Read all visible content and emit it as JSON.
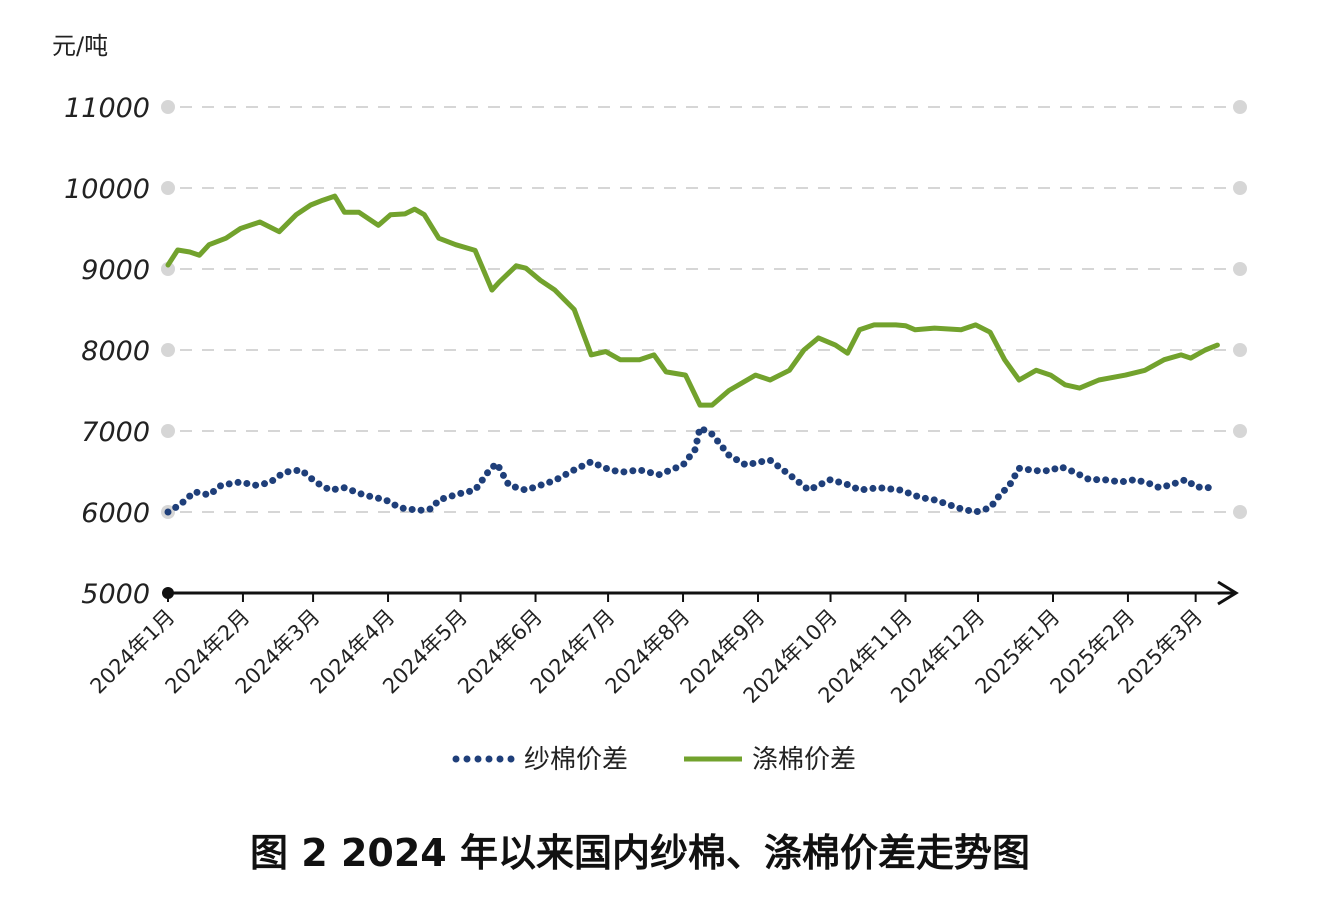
{
  "chart_data": {
    "type": "line",
    "title": "图 2  2024 年以来国内纱棉、涤棉价差走势图",
    "ylabel": "元/吨",
    "xlabel": "",
    "ylim": [
      5000,
      11000
    ],
    "yticks": [
      "11000",
      "10000",
      "9000",
      "8000",
      "7000",
      "6000",
      "5000"
    ],
    "xticks": [
      {
        "date": "2024-01-01",
        "label": "2024年1月"
      },
      {
        "date": "2024-02-01",
        "label": "2024年2月"
      },
      {
        "date": "2024-03-01",
        "label": "2024年3月"
      },
      {
        "date": "2024-04-01",
        "label": "2024年4月"
      },
      {
        "date": "2024-05-01",
        "label": "2024年5月"
      },
      {
        "date": "2024-06-01",
        "label": "2024年6月"
      },
      {
        "date": "2024-07-01",
        "label": "2024年7月"
      },
      {
        "date": "2024-08-01",
        "label": "2024年8月"
      },
      {
        "date": "2024-09-01",
        "label": "2024年9月"
      },
      {
        "date": "2024-10-01",
        "label": "2024年10月"
      },
      {
        "date": "2024-11-01",
        "label": "2024年11月"
      },
      {
        "date": "2024-12-01",
        "label": "2024年12月"
      },
      {
        "date": "2025-01-01",
        "label": "2025年1月"
      },
      {
        "date": "2025-02-01",
        "label": "2025年2月"
      },
      {
        "date": "2025-03-01",
        "label": "2025年3月"
      }
    ],
    "grid": true,
    "legend_position": "bottom",
    "series": [
      {
        "name": "纱棉价差",
        "color": "#1f3f7a",
        "style": "dotted",
        "points": [
          [
            "2024-01-01",
            6000
          ],
          [
            "2024-01-06",
            6090
          ],
          [
            "2024-01-12",
            6250
          ],
          [
            "2024-01-18",
            6210
          ],
          [
            "2024-01-23",
            6330
          ],
          [
            "2024-01-31",
            6370
          ],
          [
            "2024-02-06",
            6330
          ],
          [
            "2024-02-12",
            6360
          ],
          [
            "2024-02-18",
            6490
          ],
          [
            "2024-02-25",
            6520
          ],
          [
            "2024-03-02",
            6370
          ],
          [
            "2024-03-08",
            6270
          ],
          [
            "2024-03-14",
            6300
          ],
          [
            "2024-03-22",
            6210
          ],
          [
            "2024-03-31",
            6150
          ],
          [
            "2024-04-06",
            6050
          ],
          [
            "2024-04-14",
            6020
          ],
          [
            "2024-04-19",
            6040
          ],
          [
            "2024-04-22",
            6150
          ],
          [
            "2024-05-01",
            6230
          ],
          [
            "2024-05-07",
            6270
          ],
          [
            "2024-05-13",
            6520
          ],
          [
            "2024-05-16",
            6600
          ],
          [
            "2024-05-21",
            6330
          ],
          [
            "2024-05-28",
            6270
          ],
          [
            "2024-06-03",
            6330
          ],
          [
            "2024-06-09",
            6390
          ],
          [
            "2024-06-17",
            6520
          ],
          [
            "2024-06-24",
            6620
          ],
          [
            "2024-06-30",
            6540
          ],
          [
            "2024-07-06",
            6490
          ],
          [
            "2024-07-14",
            6520
          ],
          [
            "2024-07-22",
            6460
          ],
          [
            "2024-08-01",
            6580
          ],
          [
            "2024-08-06",
            6770
          ],
          [
            "2024-08-08",
            7040
          ],
          [
            "2024-08-13",
            6960
          ],
          [
            "2024-08-20",
            6700
          ],
          [
            "2024-08-27",
            6580
          ],
          [
            "2024-09-02",
            6620
          ],
          [
            "2024-09-06",
            6640
          ],
          [
            "2024-09-14",
            6460
          ],
          [
            "2024-09-22",
            6270
          ],
          [
            "2024-10-01",
            6400
          ],
          [
            "2024-10-09",
            6330
          ],
          [
            "2024-10-13",
            6270
          ],
          [
            "2024-10-21",
            6300
          ],
          [
            "2024-10-30",
            6270
          ],
          [
            "2024-11-07",
            6180
          ],
          [
            "2024-11-13",
            6150
          ],
          [
            "2024-11-19",
            6090
          ],
          [
            "2024-11-24",
            6040
          ],
          [
            "2024-11-30",
            6000
          ],
          [
            "2024-12-06",
            6050
          ],
          [
            "2024-12-10",
            6210
          ],
          [
            "2024-12-14",
            6330
          ],
          [
            "2024-12-18",
            6540
          ],
          [
            "2024-12-25",
            6510
          ],
          [
            "2024-12-31",
            6510
          ],
          [
            "2025-01-04",
            6560
          ],
          [
            "2025-01-10",
            6490
          ],
          [
            "2025-01-16",
            6400
          ],
          [
            "2025-01-22",
            6400
          ],
          [
            "2025-01-29",
            6370
          ],
          [
            "2025-02-04",
            6400
          ],
          [
            "2025-02-10",
            6350
          ],
          [
            "2025-02-14",
            6300
          ],
          [
            "2025-02-18",
            6330
          ],
          [
            "2025-02-25",
            6400
          ],
          [
            "2025-03-01",
            6310
          ],
          [
            "2025-03-07",
            6300
          ]
        ]
      },
      {
        "name": "涤棉价差",
        "color": "#72a22d",
        "style": "solid",
        "points": [
          [
            "2024-01-01",
            9050
          ],
          [
            "2024-01-05",
            9235
          ],
          [
            "2024-01-10",
            9210
          ],
          [
            "2024-01-14",
            9170
          ],
          [
            "2024-01-18",
            9300
          ],
          [
            "2024-01-25",
            9380
          ],
          [
            "2024-01-31",
            9500
          ],
          [
            "2024-02-08",
            9580
          ],
          [
            "2024-02-16",
            9460
          ],
          [
            "2024-02-23",
            9670
          ],
          [
            "2024-02-29",
            9790
          ],
          [
            "2024-03-05",
            9850
          ],
          [
            "2024-03-10",
            9900
          ],
          [
            "2024-03-14",
            9700
          ],
          [
            "2024-03-20",
            9700
          ],
          [
            "2024-03-28",
            9540
          ],
          [
            "2024-04-02",
            9670
          ],
          [
            "2024-04-08",
            9680
          ],
          [
            "2024-04-12",
            9740
          ],
          [
            "2024-04-16",
            9670
          ],
          [
            "2024-04-22",
            9380
          ],
          [
            "2024-04-29",
            9300
          ],
          [
            "2024-05-07",
            9230
          ],
          [
            "2024-05-14",
            8740
          ],
          [
            "2024-05-17",
            8840
          ],
          [
            "2024-05-24",
            9040
          ],
          [
            "2024-05-28",
            9010
          ],
          [
            "2024-06-03",
            8860
          ],
          [
            "2024-06-09",
            8740
          ],
          [
            "2024-06-17",
            8500
          ],
          [
            "2024-06-24",
            7940
          ],
          [
            "2024-06-30",
            7980
          ],
          [
            "2024-07-06",
            7880
          ],
          [
            "2024-07-14",
            7880
          ],
          [
            "2024-07-20",
            7940
          ],
          [
            "2024-07-25",
            7730
          ],
          [
            "2024-08-02",
            7690
          ],
          [
            "2024-08-08",
            7320
          ],
          [
            "2024-08-13",
            7320
          ],
          [
            "2024-08-20",
            7500
          ],
          [
            "2024-08-31",
            7690
          ],
          [
            "2024-09-06",
            7630
          ],
          [
            "2024-09-14",
            7750
          ],
          [
            "2024-09-20",
            8000
          ],
          [
            "2024-09-26",
            8150
          ],
          [
            "2024-10-03",
            8060
          ],
          [
            "2024-10-08",
            7960
          ],
          [
            "2024-10-13",
            8250
          ],
          [
            "2024-10-19",
            8310
          ],
          [
            "2024-10-28",
            8310
          ],
          [
            "2024-11-01",
            8300
          ],
          [
            "2024-11-05",
            8250
          ],
          [
            "2024-11-13",
            8270
          ],
          [
            "2024-11-24",
            8250
          ],
          [
            "2024-11-30",
            8310
          ],
          [
            "2024-12-06",
            8220
          ],
          [
            "2024-12-12",
            7880
          ],
          [
            "2024-12-18",
            7630
          ],
          [
            "2024-12-25",
            7750
          ],
          [
            "2024-12-31",
            7690
          ],
          [
            "2025-01-06",
            7570
          ],
          [
            "2025-01-12",
            7530
          ],
          [
            "2025-01-20",
            7630
          ],
          [
            "2025-01-31",
            7690
          ],
          [
            "2025-02-08",
            7750
          ],
          [
            "2025-02-16",
            7880
          ],
          [
            "2025-02-23",
            7940
          ],
          [
            "2025-02-27",
            7900
          ],
          [
            "2025-03-05",
            8000
          ],
          [
            "2025-03-10",
            8060
          ]
        ]
      }
    ]
  }
}
